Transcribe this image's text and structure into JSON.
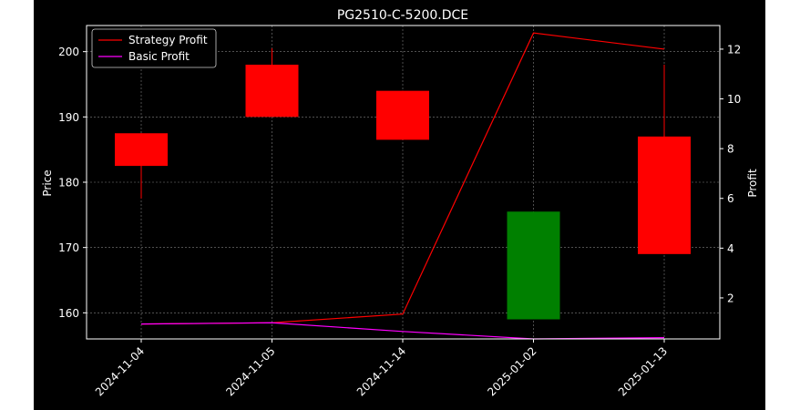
{
  "chart_data": {
    "type": "candlestick",
    "title": "PG2510-C-5200.DCE",
    "categories": [
      "2024-11-04",
      "2024-11-05",
      "2024-11-14",
      "2025-01-02",
      "2025-01-13"
    ],
    "ohlc": [
      {
        "date": "2024-11-04",
        "open": 187.5,
        "high": 187.5,
        "low": 177.5,
        "close": 182.5,
        "color": "#ff0000"
      },
      {
        "date": "2024-11-05",
        "open": 198.0,
        "high": 200.5,
        "low": 190.0,
        "close": 190.0,
        "color": "#ff0000"
      },
      {
        "date": "2024-11-14",
        "open": 194.0,
        "high": 194.0,
        "low": 186.5,
        "close": 186.5,
        "color": "#ff0000"
      },
      {
        "date": "2025-01-02",
        "open": 159.0,
        "high": 175.5,
        "low": 159.0,
        "close": 175.5,
        "color": "#008000"
      },
      {
        "date": "2025-01-13",
        "open": 187.0,
        "high": 198.0,
        "low": 169.0,
        "close": 169.0,
        "color": "#ff0000"
      }
    ],
    "series": [
      {
        "name": "Strategy Profit",
        "color": "#ff0000",
        "values": [
          0.95,
          1.0,
          1.35,
          12.65,
          12.0
        ]
      },
      {
        "name": "Basic Profit",
        "color": "#ff00ff",
        "values": [
          0.95,
          1.0,
          0.65,
          0.35,
          0.4
        ]
      }
    ],
    "ylabel": "Price",
    "ylim": [
      156.0,
      204.0
    ],
    "yticks": [
      160,
      170,
      180,
      190,
      200
    ],
    "y2label": "Profit",
    "y2lim": [
      0.35,
      12.95
    ],
    "y2ticks": [
      2,
      4,
      6,
      8,
      10,
      12
    ],
    "grid": true,
    "legend": "top-left",
    "background": "#000000"
  }
}
